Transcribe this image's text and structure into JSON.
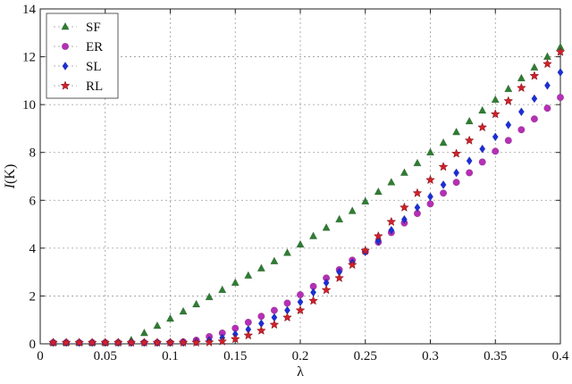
{
  "chart_data": {
    "type": "scatter",
    "xlabel": "λ",
    "ylabel_prefix": "I",
    "ylabel_suffix": "(K)",
    "xlim": [
      0,
      0.4
    ],
    "ylim": [
      0,
      14
    ],
    "x_ticks": [
      0,
      0.05,
      0.1,
      0.15,
      0.2,
      0.25,
      0.3,
      0.35,
      0.4
    ],
    "x_tick_labels": [
      "0",
      "0.05",
      "0.1",
      "0.15",
      "0.2",
      "0.25",
      "0.3",
      "0.35",
      "0.4"
    ],
    "y_ticks": [
      0,
      2,
      4,
      6,
      8,
      10,
      12,
      14
    ],
    "y_tick_labels": [
      "0",
      "2",
      "4",
      "6",
      "8",
      "10",
      "12",
      "14"
    ],
    "grid": true,
    "legend_position": "top-left",
    "x": [
      0.01,
      0.02,
      0.03,
      0.04,
      0.05,
      0.06,
      0.07,
      0.08,
      0.09,
      0.1,
      0.11,
      0.12,
      0.13,
      0.14,
      0.15,
      0.16,
      0.17,
      0.18,
      0.19,
      0.2,
      0.21,
      0.22,
      0.23,
      0.24,
      0.25,
      0.26,
      0.27,
      0.28,
      0.29,
      0.3,
      0.31,
      0.32,
      0.33,
      0.34,
      0.35,
      0.36,
      0.37,
      0.38,
      0.39,
      0.4
    ],
    "series": [
      {
        "name": "SF",
        "marker": "triangle",
        "color": "#2e7d32",
        "values": [
          0.05,
          0.05,
          0.05,
          0.05,
          0.05,
          0.06,
          0.15,
          0.45,
          0.75,
          1.05,
          1.35,
          1.65,
          1.95,
          2.25,
          2.55,
          2.85,
          3.15,
          3.45,
          3.8,
          4.15,
          4.5,
          4.85,
          5.2,
          5.55,
          5.95,
          6.35,
          6.75,
          7.15,
          7.55,
          8.0,
          8.4,
          8.85,
          9.3,
          9.75,
          10.2,
          10.65,
          11.1,
          11.55,
          12.0,
          12.4
        ]
      },
      {
        "name": "ER",
        "marker": "circle",
        "color": "#b62fb6",
        "values": [
          0.05,
          0.05,
          0.05,
          0.05,
          0.05,
          0.05,
          0.05,
          0.05,
          0.05,
          0.05,
          0.08,
          0.15,
          0.3,
          0.45,
          0.65,
          0.9,
          1.15,
          1.4,
          1.7,
          2.05,
          2.4,
          2.75,
          3.1,
          3.5,
          3.85,
          4.25,
          4.65,
          5.05,
          5.45,
          5.85,
          6.3,
          6.75,
          7.15,
          7.6,
          8.05,
          8.5,
          8.95,
          9.4,
          9.85,
          10.3
        ]
      },
      {
        "name": "SL",
        "marker": "diamond",
        "color": "#1c2fd6",
        "values": [
          0.05,
          0.05,
          0.05,
          0.05,
          0.05,
          0.05,
          0.05,
          0.05,
          0.05,
          0.05,
          0.05,
          0.08,
          0.15,
          0.25,
          0.4,
          0.6,
          0.85,
          1.1,
          1.4,
          1.75,
          2.15,
          2.55,
          3.0,
          3.4,
          3.85,
          4.3,
          4.75,
          5.2,
          5.7,
          6.15,
          6.65,
          7.15,
          7.65,
          8.15,
          8.65,
          9.15,
          9.7,
          10.25,
          10.8,
          11.35
        ]
      },
      {
        "name": "RL",
        "marker": "star",
        "color": "#d0202a",
        "values": [
          0.05,
          0.05,
          0.05,
          0.05,
          0.05,
          0.05,
          0.05,
          0.05,
          0.05,
          0.05,
          0.05,
          0.05,
          0.06,
          0.1,
          0.2,
          0.35,
          0.55,
          0.8,
          1.1,
          1.4,
          1.8,
          2.25,
          2.75,
          3.3,
          3.9,
          4.5,
          5.1,
          5.7,
          6.3,
          6.85,
          7.4,
          7.95,
          8.5,
          9.05,
          9.6,
          10.15,
          10.7,
          11.2,
          11.7,
          12.2
        ]
      }
    ]
  }
}
